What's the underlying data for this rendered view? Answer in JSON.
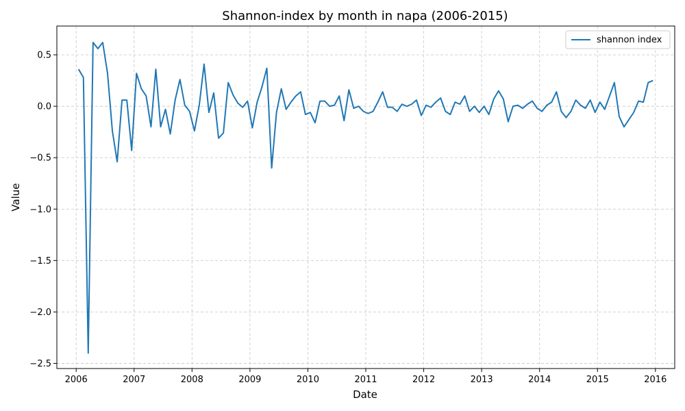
{
  "chart_data": {
    "type": "line",
    "title": "Shannon-index by month in napa (2006-2015)",
    "xlabel": "Date",
    "ylabel": "Value",
    "xlim": [
      "2005-09",
      "2016-05"
    ],
    "ylim": [
      -2.55,
      0.78
    ],
    "x_ticks": [
      "2006",
      "2007",
      "2008",
      "2009",
      "2010",
      "2011",
      "2012",
      "2013",
      "2014",
      "2015",
      "2016"
    ],
    "y_ticks": [
      0.5,
      0.0,
      -0.5,
      -1.0,
      -1.5,
      -2.0,
      -2.5
    ],
    "y_tick_labels": [
      "0.5",
      "0.0",
      "−0.5",
      "−1.0",
      "−1.5",
      "−2.0",
      "−2.5"
    ],
    "grid": true,
    "legend": "top-right",
    "series": [
      {
        "name": "shannon index",
        "color": "#1f77b4",
        "x": [
          "2006-01",
          "2006-02",
          "2006-03",
          "2006-04",
          "2006-05",
          "2006-06",
          "2006-07",
          "2006-08",
          "2006-09",
          "2006-10",
          "2006-11",
          "2006-12",
          "2007-01",
          "2007-02",
          "2007-03",
          "2007-04",
          "2007-05",
          "2007-06",
          "2007-07",
          "2007-08",
          "2007-09",
          "2007-10",
          "2007-11",
          "2007-12",
          "2008-01",
          "2008-02",
          "2008-03",
          "2008-04",
          "2008-05",
          "2008-06",
          "2008-07",
          "2008-08",
          "2008-09",
          "2008-10",
          "2008-11",
          "2008-12",
          "2009-01",
          "2009-02",
          "2009-03",
          "2009-04",
          "2009-05",
          "2009-06",
          "2009-07",
          "2009-08",
          "2009-09",
          "2009-10",
          "2009-11",
          "2009-12",
          "2010-01",
          "2010-02",
          "2010-03",
          "2010-04",
          "2010-05",
          "2010-06",
          "2010-07",
          "2010-08",
          "2010-09",
          "2010-10",
          "2010-11",
          "2010-12",
          "2011-01",
          "2011-02",
          "2011-03",
          "2011-04",
          "2011-05",
          "2011-06",
          "2011-07",
          "2011-08",
          "2011-09",
          "2011-10",
          "2011-11",
          "2011-12",
          "2012-01",
          "2012-02",
          "2012-03",
          "2012-04",
          "2012-05",
          "2012-06",
          "2012-07",
          "2012-08",
          "2012-09",
          "2012-10",
          "2012-11",
          "2012-12",
          "2013-01",
          "2013-02",
          "2013-03",
          "2013-04",
          "2013-05",
          "2013-06",
          "2013-07",
          "2013-08",
          "2013-09",
          "2013-10",
          "2013-11",
          "2013-12",
          "2014-01",
          "2014-02",
          "2014-03",
          "2014-04",
          "2014-05",
          "2014-06",
          "2014-07",
          "2014-08",
          "2014-09",
          "2014-10",
          "2014-11",
          "2014-12",
          "2015-01",
          "2015-02",
          "2015-03",
          "2015-04",
          "2015-05",
          "2015-06",
          "2015-07",
          "2015-08",
          "2015-09",
          "2015-10",
          "2015-11",
          "2015-12"
        ],
        "values": [
          0.36,
          0.28,
          -2.4,
          0.62,
          0.56,
          0.62,
          0.32,
          -0.24,
          -0.54,
          0.06,
          0.06,
          -0.43,
          0.32,
          0.17,
          0.1,
          -0.2,
          0.36,
          -0.2,
          -0.03,
          -0.27,
          0.06,
          0.26,
          0.01,
          -0.05,
          -0.24,
          0.01,
          0.41,
          -0.06,
          0.13,
          -0.31,
          -0.26,
          0.23,
          0.11,
          0.03,
          -0.01,
          0.05,
          -0.21,
          0.04,
          0.19,
          0.37,
          -0.6,
          -0.06,
          0.17,
          -0.03,
          0.04,
          0.1,
          0.14,
          -0.08,
          -0.06,
          -0.16,
          0.05,
          0.05,
          0.0,
          0.01,
          0.1,
          -0.14,
          0.16,
          -0.02,
          0.0,
          -0.05,
          -0.07,
          -0.05,
          0.04,
          0.14,
          -0.01,
          -0.01,
          -0.05,
          0.02,
          0.0,
          0.02,
          0.06,
          -0.09,
          0.01,
          -0.01,
          0.04,
          0.08,
          -0.05,
          -0.08,
          0.04,
          0.02,
          0.1,
          -0.05,
          0.0,
          -0.06,
          0.0,
          -0.08,
          0.07,
          0.15,
          0.07,
          -0.15,
          0.0,
          0.01,
          -0.02,
          0.02,
          0.05,
          -0.02,
          -0.05,
          0.01,
          0.04,
          0.14,
          -0.05,
          -0.11,
          -0.05,
          0.06,
          0.01,
          -0.02,
          0.06,
          -0.06,
          0.04,
          -0.03,
          0.1,
          0.23,
          -0.1,
          -0.2,
          -0.13,
          -0.06,
          0.05,
          0.04,
          0.23,
          0.25
        ]
      }
    ]
  }
}
